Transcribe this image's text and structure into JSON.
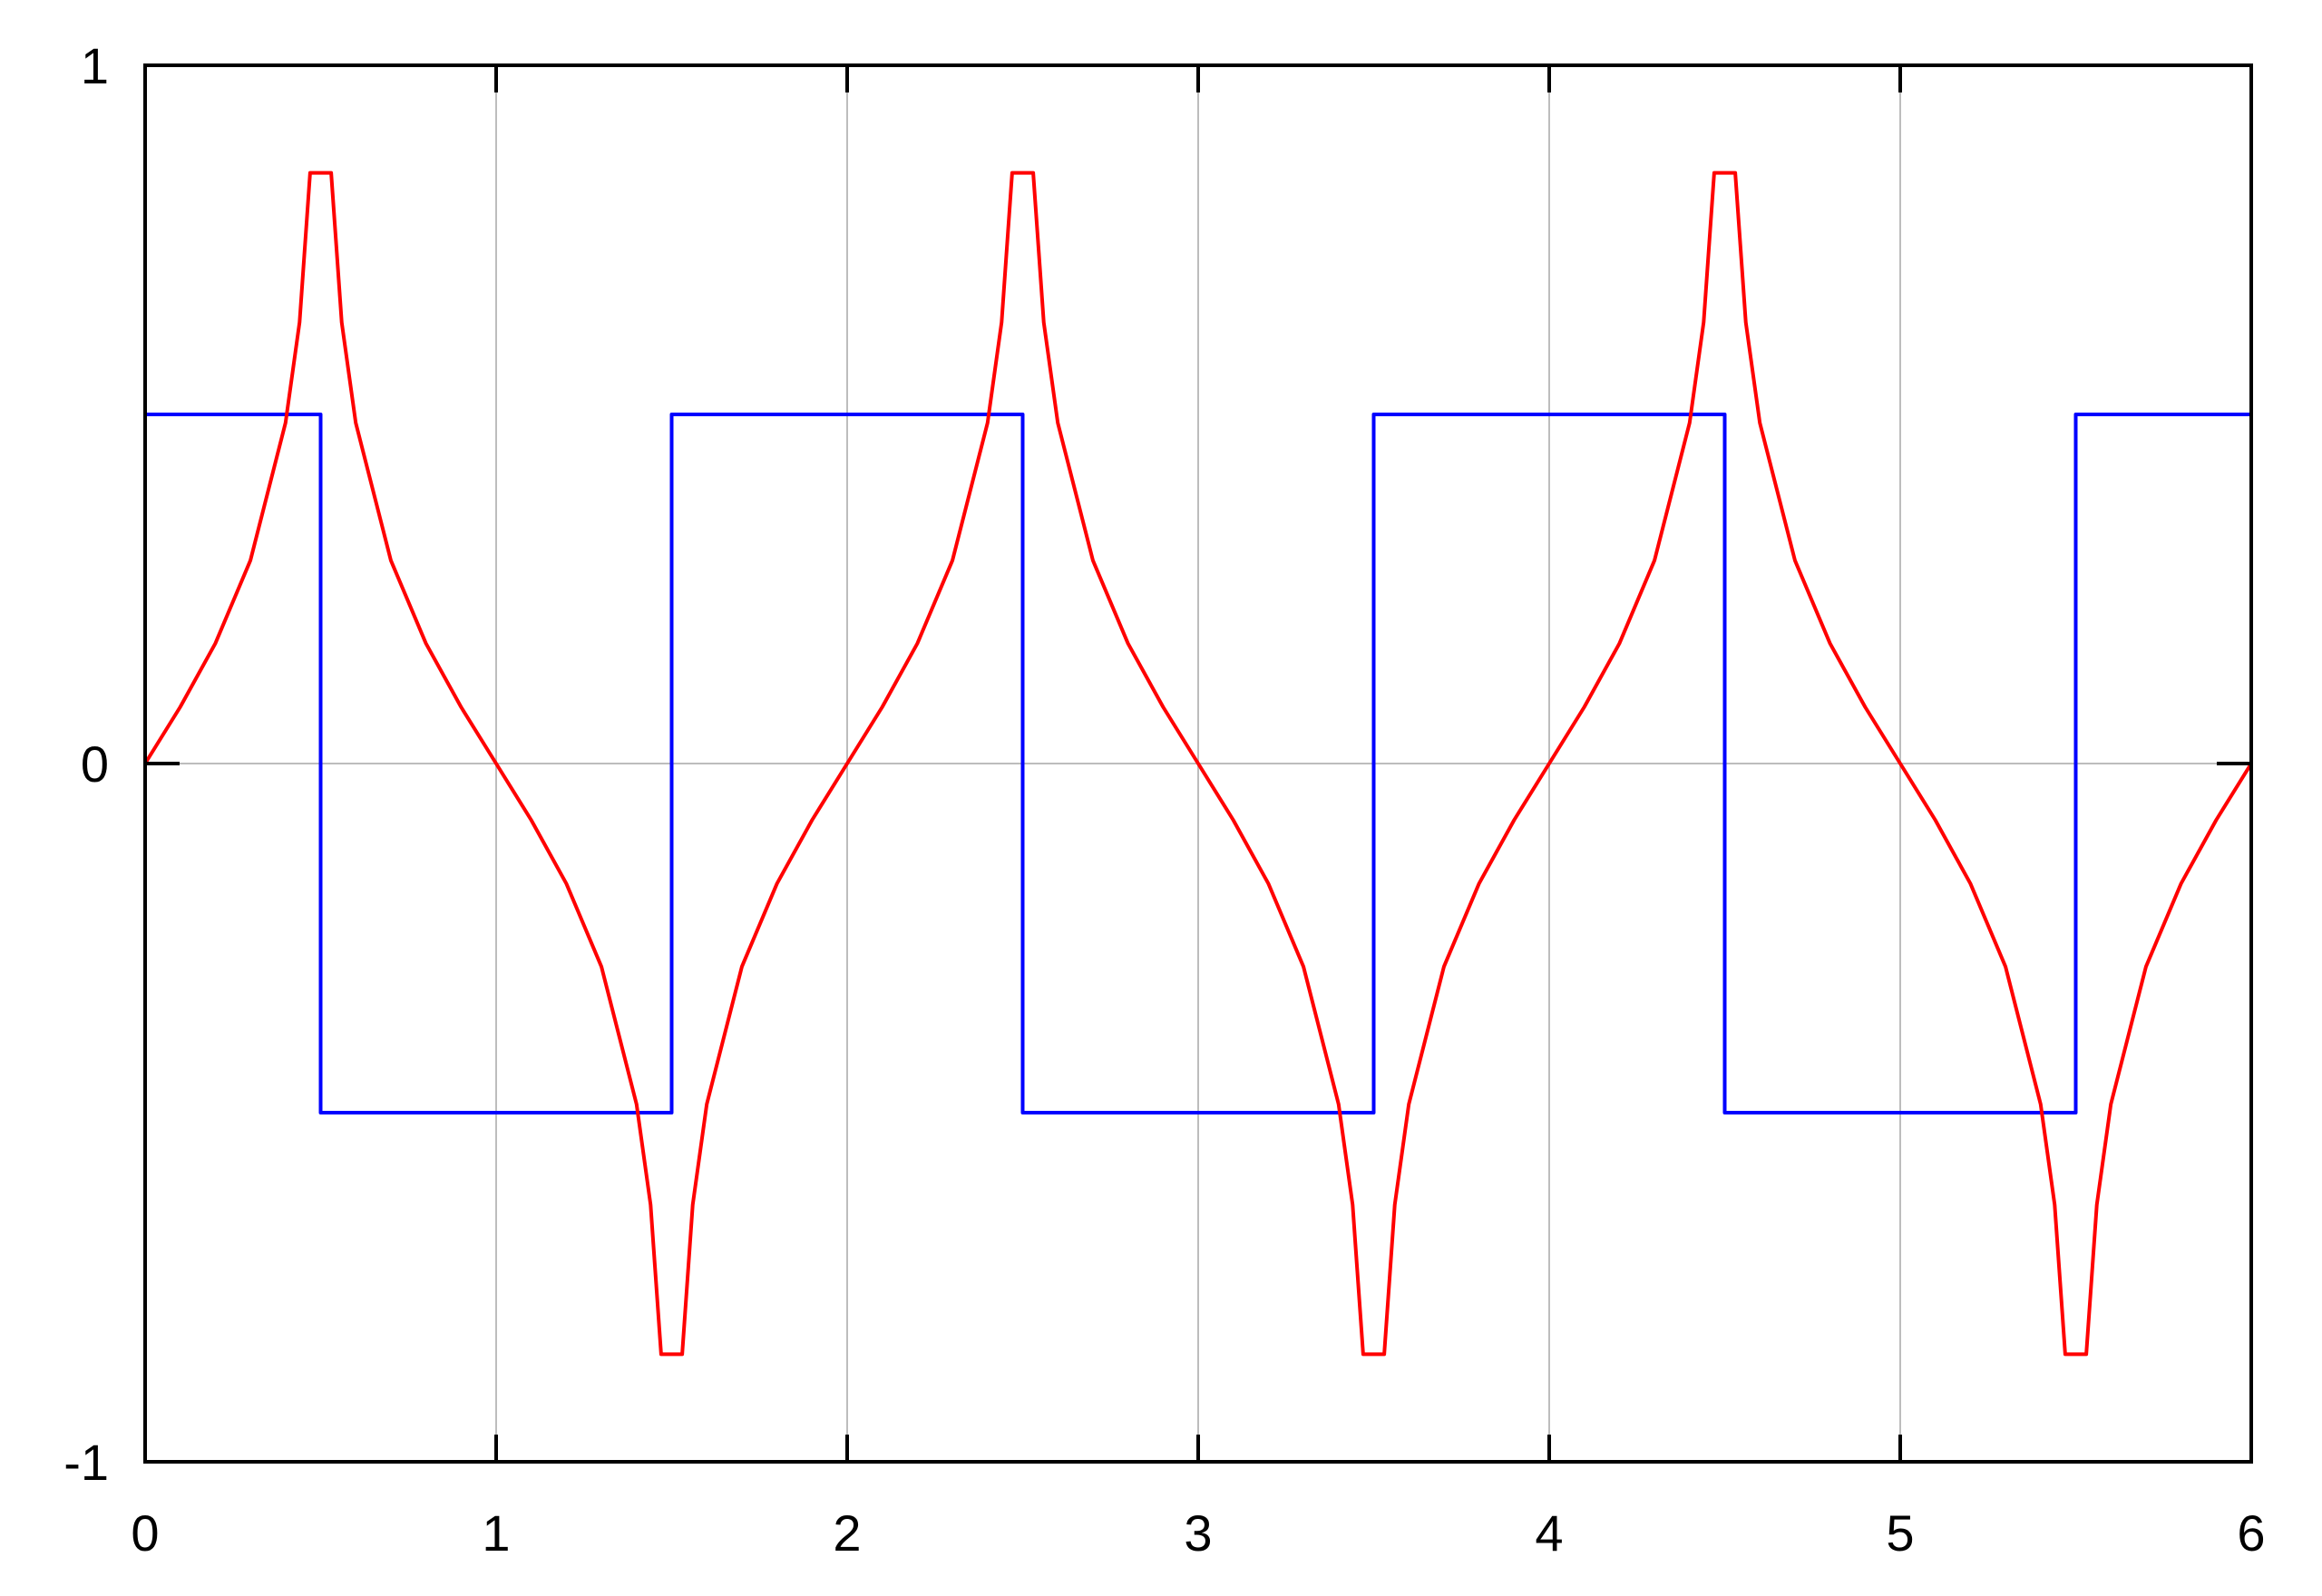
{
  "chart_data": {
    "type": "line",
    "title": "",
    "xlabel": "",
    "ylabel": "",
    "xlim": [
      0,
      6
    ],
    "ylim": [
      -1,
      1
    ],
    "x_ticks": [
      "0",
      "1",
      "2",
      "3",
      "4",
      "5",
      "6"
    ],
    "y_ticks": [
      "-1",
      "0",
      "1"
    ],
    "grid": true,
    "legend": "none",
    "series": [
      {
        "color": "#0000ff",
        "x": [
          0,
          0.5,
          0.5,
          1.5,
          1.5,
          2.5,
          2.5,
          3.5,
          3.5,
          4.5,
          4.5,
          5.5,
          5.5,
          6
        ],
        "y": [
          0.5,
          0.5,
          -0.5,
          -0.5,
          0.5,
          0.5,
          -0.5,
          -0.5,
          0.5,
          0.5,
          -0.5,
          -0.5,
          0.5,
          0.5
        ]
      },
      {
        "color": "#ff0000",
        "x": [
          0,
          0.1,
          0.2,
          0.3,
          0.4,
          0.44,
          0.47,
          0.53,
          0.56,
          0.6,
          0.7,
          0.8,
          0.9,
          1.0,
          1.1,
          1.2,
          1.3,
          1.4,
          1.44,
          1.47,
          1.53,
          1.56,
          1.6,
          1.7,
          1.8,
          1.9,
          2.0,
          2.1,
          2.2,
          2.3,
          2.4,
          2.44,
          2.47,
          2.53,
          2.56,
          2.6,
          2.7,
          2.8,
          2.9,
          3.0,
          3.1,
          3.2,
          3.3,
          3.4,
          3.44,
          3.47,
          3.53,
          3.56,
          3.6,
          3.7,
          3.8,
          3.9,
          4.0,
          4.1,
          4.2,
          4.3,
          4.4,
          4.44,
          4.47,
          4.53,
          4.56,
          4.6,
          4.7,
          4.8,
          4.9,
          5.0,
          5.1,
          5.2,
          5.3,
          5.4,
          5.44,
          5.47,
          5.53,
          5.56,
          5.6,
          5.7,
          5.8,
          5.9,
          6.0
        ],
        "y": [
          0,
          0.081,
          0.172,
          0.291,
          0.488,
          0.632,
          0.846,
          0.846,
          0.632,
          0.488,
          0.291,
          0.172,
          0.081,
          0,
          -0.081,
          -0.172,
          -0.291,
          -0.488,
          -0.632,
          -0.846,
          -0.846,
          -0.632,
          -0.488,
          -0.291,
          -0.172,
          -0.081,
          0,
          0.081,
          0.172,
          0.291,
          0.488,
          0.632,
          0.846,
          0.846,
          0.632,
          0.488,
          0.291,
          0.172,
          0.081,
          0,
          -0.081,
          -0.172,
          -0.291,
          -0.488,
          -0.632,
          -0.846,
          -0.846,
          -0.632,
          -0.488,
          -0.291,
          -0.172,
          -0.081,
          0,
          0.081,
          0.172,
          0.291,
          0.488,
          0.632,
          0.846,
          0.846,
          0.632,
          0.488,
          0.291,
          0.172,
          0.081,
          0,
          -0.081,
          -0.172,
          -0.291,
          -0.488,
          -0.632,
          -0.846,
          -0.846,
          -0.632,
          -0.488,
          -0.291,
          -0.172,
          -0.081,
          0
        ]
      }
    ]
  }
}
